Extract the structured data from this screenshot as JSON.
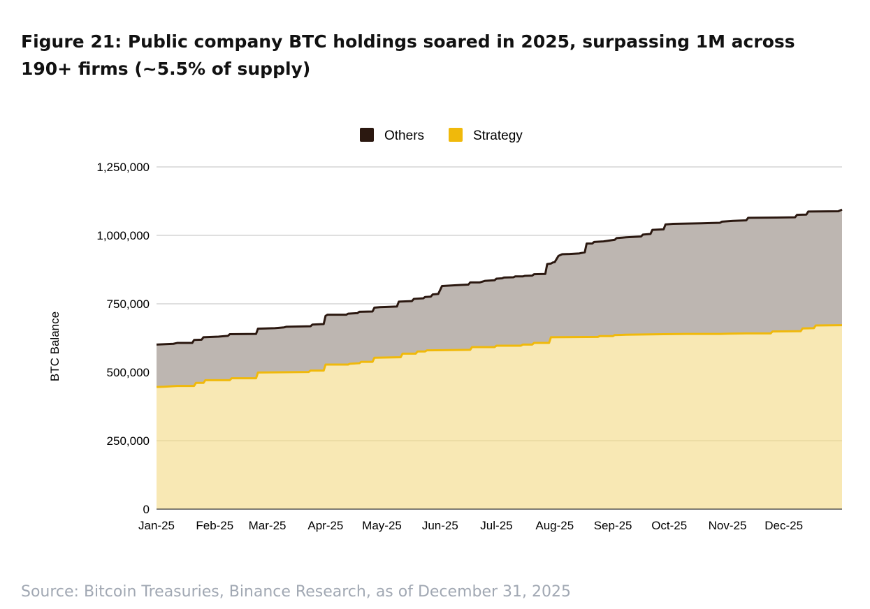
{
  "figure": {
    "title": "Figure 21: Public company BTC holdings soared in 2025, surpassing 1M across 190+ firms (~5.5% of supply)",
    "source": "Source: Bitcoin Treasuries, Binance Research, as of December 31, 2025"
  },
  "colors": {
    "others_line": "#2b1810",
    "others_fill": "#bdb6b1",
    "strategy_line": "#f0b90b",
    "strategy_fill": "#f8e8b4",
    "grid": "#cccccc",
    "text": "#000000"
  },
  "chart_data": {
    "type": "area",
    "stacked": true,
    "title": "",
    "xlabel": "",
    "ylabel": "BTC Balance",
    "ylim": [
      0,
      1250000
    ],
    "yticks": [
      0,
      250000,
      500000,
      750000,
      1000000,
      1250000
    ],
    "ytick_labels": [
      "0",
      "250,000",
      "500,000",
      "750,000",
      "1,000,000",
      "1,250,000"
    ],
    "xlim": [
      0,
      365
    ],
    "xticks": [
      {
        "day": 0,
        "label": "Jan-25"
      },
      {
        "day": 31,
        "label": "Feb-25"
      },
      {
        "day": 59,
        "label": "Mar-25"
      },
      {
        "day": 90,
        "label": "Apr-25"
      },
      {
        "day": 120,
        "label": "May-25"
      },
      {
        "day": 151,
        "label": "Jun-25"
      },
      {
        "day": 181,
        "label": "Jul-25"
      },
      {
        "day": 212,
        "label": "Aug-25"
      },
      {
        "day": 243,
        "label": "Sep-25"
      },
      {
        "day": 273,
        "label": "Oct-25"
      },
      {
        "day": 304,
        "label": "Nov-25"
      },
      {
        "day": 334,
        "label": "Dec-25"
      }
    ],
    "legend": [
      "Others",
      "Strategy"
    ],
    "legend_position": "top-center",
    "grid": true,
    "series": [
      {
        "name": "Strategy",
        "points": [
          [
            0,
            446000
          ],
          [
            4,
            447000
          ],
          [
            11,
            450000
          ],
          [
            20,
            450000
          ],
          [
            21,
            461000
          ],
          [
            25,
            461000
          ],
          [
            26,
            471000
          ],
          [
            39,
            471000
          ],
          [
            40,
            478000
          ],
          [
            53,
            478000
          ],
          [
            54,
            499000
          ],
          [
            81,
            501000
          ],
          [
            82,
            506000
          ],
          [
            89,
            506000
          ],
          [
            90,
            528000
          ],
          [
            102,
            528000
          ],
          [
            103,
            531000
          ],
          [
            108,
            533000
          ],
          [
            109,
            538000
          ],
          [
            115,
            538000
          ],
          [
            116,
            553000
          ],
          [
            130,
            555000
          ],
          [
            131,
            568000
          ],
          [
            138,
            568000
          ],
          [
            139,
            576000
          ],
          [
            143,
            576000
          ],
          [
            144,
            580000
          ],
          [
            167,
            582000
          ],
          [
            168,
            592000
          ],
          [
            180,
            592000
          ],
          [
            181,
            597000
          ],
          [
            194,
            597000
          ],
          [
            195,
            601000
          ],
          [
            200,
            601000
          ],
          [
            201,
            607000
          ],
          [
            209,
            607000
          ],
          [
            210,
            628000
          ],
          [
            235,
            629000
          ],
          [
            236,
            632000
          ],
          [
            243,
            632000
          ],
          [
            244,
            636000
          ],
          [
            250,
            637000
          ],
          [
            260,
            638000
          ],
          [
            270,
            639000
          ],
          [
            282,
            640000
          ],
          [
            300,
            640000
          ],
          [
            305,
            641000
          ],
          [
            314,
            642000
          ],
          [
            327,
            642000
          ],
          [
            328,
            649000
          ],
          [
            343,
            650000
          ],
          [
            344,
            660000
          ],
          [
            350,
            661000
          ],
          [
            351,
            671000
          ],
          [
            365,
            672000
          ]
        ]
      },
      {
        "name": "Others",
        "points": [
          [
            0,
            601000
          ],
          [
            3,
            602000
          ],
          [
            9,
            604000
          ],
          [
            11,
            607000
          ],
          [
            19,
            607000
          ],
          [
            20,
            618000
          ],
          [
            24,
            619000
          ],
          [
            25,
            628000
          ],
          [
            33,
            630000
          ],
          [
            38,
            633000
          ],
          [
            39,
            639000
          ],
          [
            53,
            640000
          ],
          [
            54,
            659000
          ],
          [
            63,
            661000
          ],
          [
            68,
            664000
          ],
          [
            69,
            666000
          ],
          [
            82,
            668000
          ],
          [
            83,
            674000
          ],
          [
            89,
            676000
          ],
          [
            90,
            706000
          ],
          [
            91,
            710000
          ],
          [
            101,
            710000
          ],
          [
            102,
            714000
          ],
          [
            107,
            716000
          ],
          [
            108,
            721000
          ],
          [
            115,
            722000
          ],
          [
            116,
            736000
          ],
          [
            119,
            738000
          ],
          [
            128,
            740000
          ],
          [
            129,
            758000
          ],
          [
            136,
            760000
          ],
          [
            137,
            768000
          ],
          [
            142,
            770000
          ],
          [
            143,
            775000
          ],
          [
            146,
            776000
          ],
          [
            147,
            784000
          ],
          [
            150,
            786000
          ],
          [
            152,
            815000
          ],
          [
            162,
            819000
          ],
          [
            166,
            820000
          ],
          [
            167,
            828000
          ],
          [
            172,
            828000
          ],
          [
            175,
            834000
          ],
          [
            180,
            836000
          ],
          [
            181,
            842000
          ],
          [
            184,
            843000
          ],
          [
            185,
            846000
          ],
          [
            190,
            847000
          ],
          [
            191,
            850000
          ],
          [
            195,
            850000
          ],
          [
            196,
            852000
          ],
          [
            200,
            853000
          ],
          [
            201,
            858000
          ],
          [
            207,
            859000
          ],
          [
            208,
            895000
          ],
          [
            210,
            897000
          ],
          [
            211,
            901000
          ],
          [
            212,
            902000
          ],
          [
            214,
            925000
          ],
          [
            216,
            931000
          ],
          [
            220,
            932000
          ],
          [
            225,
            934000
          ],
          [
            228,
            938000
          ],
          [
            229,
            970000
          ],
          [
            232,
            970000
          ],
          [
            233,
            976000
          ],
          [
            238,
            978000
          ],
          [
            240,
            980000
          ],
          [
            244,
            984000
          ],
          [
            245,
            990000
          ],
          [
            250,
            993000
          ],
          [
            258,
            996000
          ],
          [
            259,
            1003000
          ],
          [
            263,
            1005000
          ],
          [
            264,
            1020000
          ],
          [
            270,
            1022000
          ],
          [
            271,
            1040000
          ],
          [
            275,
            1042000
          ],
          [
            290,
            1044000
          ],
          [
            300,
            1046000
          ],
          [
            301,
            1050000
          ],
          [
            307,
            1053000
          ],
          [
            314,
            1055000
          ],
          [
            315,
            1064000
          ],
          [
            330,
            1065000
          ],
          [
            340,
            1066000
          ],
          [
            341,
            1075000
          ],
          [
            346,
            1076000
          ],
          [
            347,
            1087000
          ],
          [
            363,
            1088000
          ],
          [
            365,
            1094000
          ]
        ]
      }
    ]
  }
}
